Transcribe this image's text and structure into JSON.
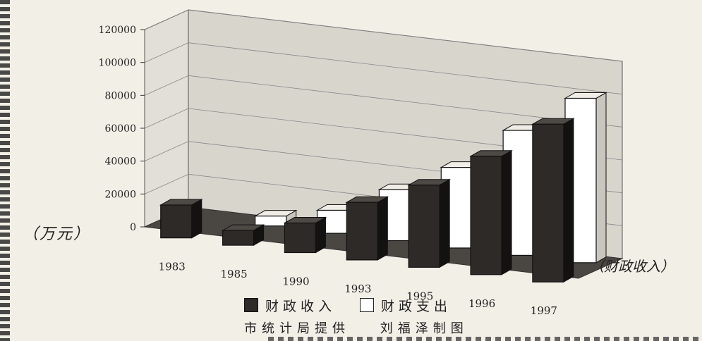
{
  "chart_data": {
    "type": "bar",
    "categories": [
      "1983",
      "1985",
      "1990",
      "1993",
      "1995",
      "1996",
      "1997"
    ],
    "series": [
      {
        "name": "财政收入",
        "values": [
          20000,
          9000,
          18000,
          35000,
          50000,
          72000,
          96000
        ],
        "color": "#2d2a27"
      },
      {
        "name": "财政支出",
        "values": [
          0,
          6000,
          14000,
          31000,
          49000,
          76000,
          100000
        ],
        "color": "#ffffff"
      }
    ],
    "ylim": [
      0,
      120000
    ],
    "y_ticks": [
      "0",
      "20000",
      "40000",
      "60000",
      "80000",
      "100000",
      "120000"
    ],
    "ylabel": "（万元）",
    "xlabel": "（财政收入）",
    "grid": true,
    "legend_position": "bottom"
  },
  "legend": {
    "income": "财政收入",
    "expenditure": "财政支出"
  },
  "credits": {
    "provider": "市统计局提供",
    "author": "刘福泽制图"
  },
  "colors": {
    "income": "#2d2a27",
    "expenditure": "#ffffff",
    "wall": "#d8d5cd",
    "floor": "#4a4743"
  }
}
